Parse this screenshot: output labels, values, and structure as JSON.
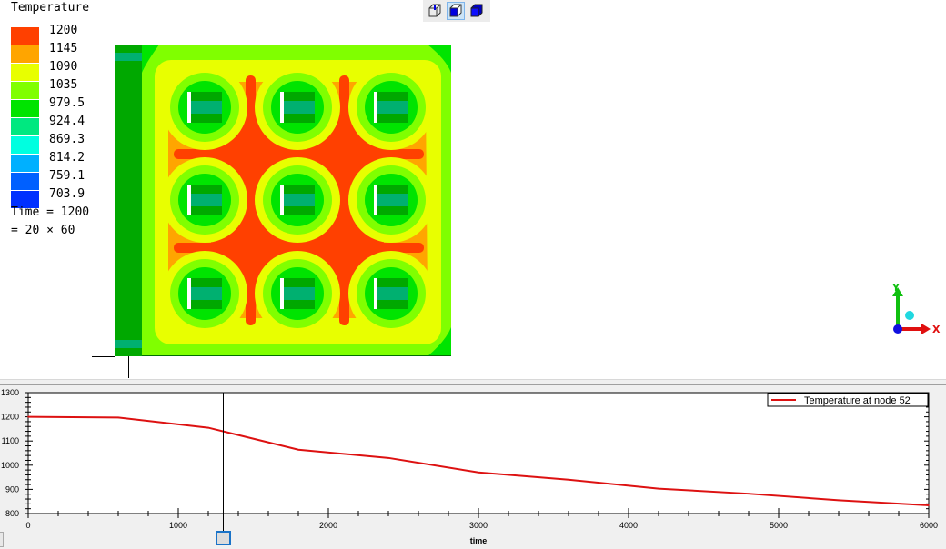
{
  "legend": {
    "title": "Temperature",
    "items": [
      {
        "value": "1200",
        "color": "#ff4000"
      },
      {
        "value": "1145",
        "color": "#ffa500"
      },
      {
        "value": "1090",
        "color": "#e8ff00"
      },
      {
        "value": "1035",
        "color": "#80ff00"
      },
      {
        "value": "979.5",
        "color": "#00e400"
      },
      {
        "value": "924.4",
        "color": "#00e880"
      },
      {
        "value": "869.3",
        "color": "#00ffe0"
      },
      {
        "value": "814.2",
        "color": "#00b0ff"
      },
      {
        "value": "759.1",
        "color": "#0060ff"
      },
      {
        "value": "703.9",
        "color": "#0030ff"
      }
    ],
    "time_line1": "Time = 1200",
    "time_line2": "= 20 × 60"
  },
  "toolbar": {
    "buttons": [
      {
        "icon": "wireframe-cube-icon",
        "active": false
      },
      {
        "icon": "shaded-cube-icon",
        "active": true
      },
      {
        "icon": "solid-cube-icon",
        "active": false
      }
    ]
  },
  "axes_triad": {
    "x_label": "X",
    "y_label": "Y"
  },
  "chart_data": {
    "type": "line",
    "title": "",
    "xlabel": "time",
    "ylabel": "",
    "xlim": [
      0,
      6000
    ],
    "ylim": [
      800,
      1300
    ],
    "x_ticks": [
      "0",
      "1000",
      "2000",
      "3000",
      "4000",
      "5000",
      "6000"
    ],
    "y_ticks": [
      "800",
      "900",
      "1000",
      "1100",
      "1200",
      "1300"
    ],
    "legend_position": "top-right",
    "cursor_x": 1300,
    "series": [
      {
        "name": "Temperature at node 52",
        "color": "#dd1111",
        "x": [
          0,
          600,
          1200,
          1800,
          2400,
          3000,
          3600,
          4200,
          4800,
          5400,
          6000
        ],
        "y": [
          1200,
          1197,
          1155,
          1064,
          1030,
          970,
          940,
          903,
          882,
          855,
          834
        ]
      }
    ]
  }
}
